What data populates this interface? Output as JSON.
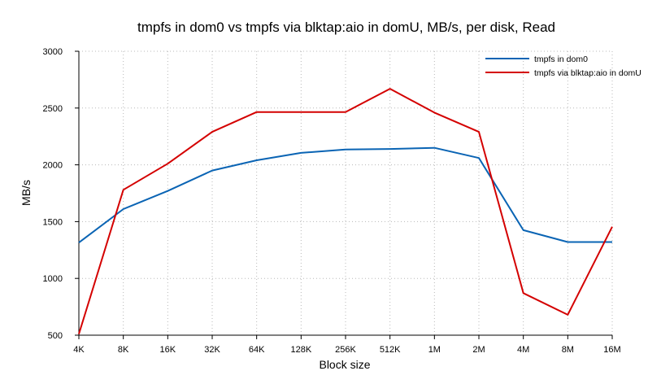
{
  "chart_data": {
    "type": "line",
    "title": "tmpfs in dom0 vs tmpfs via blktap:aio in domU, MB/s, per disk, Read",
    "xlabel": "Block size",
    "ylabel": "MB/s",
    "ylim": [
      500,
      3000
    ],
    "yticks": [
      500,
      1000,
      1500,
      2000,
      2500,
      3000
    ],
    "categories": [
      "4K",
      "8K",
      "16K",
      "32K",
      "64K",
      "128K",
      "256K",
      "512K",
      "1M",
      "2M",
      "4M",
      "8M",
      "16M"
    ],
    "grid": true,
    "legend_position": "top-right",
    "series": [
      {
        "name": "tmpfs in dom0",
        "color": "#0a64b4",
        "values": [
          1315,
          1610,
          1770,
          1950,
          2040,
          2105,
          2135,
          2140,
          2150,
          2060,
          1425,
          1320,
          1320
        ]
      },
      {
        "name": "tmpfs via blktap:aio in domU",
        "color": "#d40000",
        "values": [
          510,
          1780,
          2010,
          2290,
          2465,
          2465,
          2465,
          2670,
          2460,
          2290,
          870,
          680,
          1455
        ]
      }
    ]
  }
}
